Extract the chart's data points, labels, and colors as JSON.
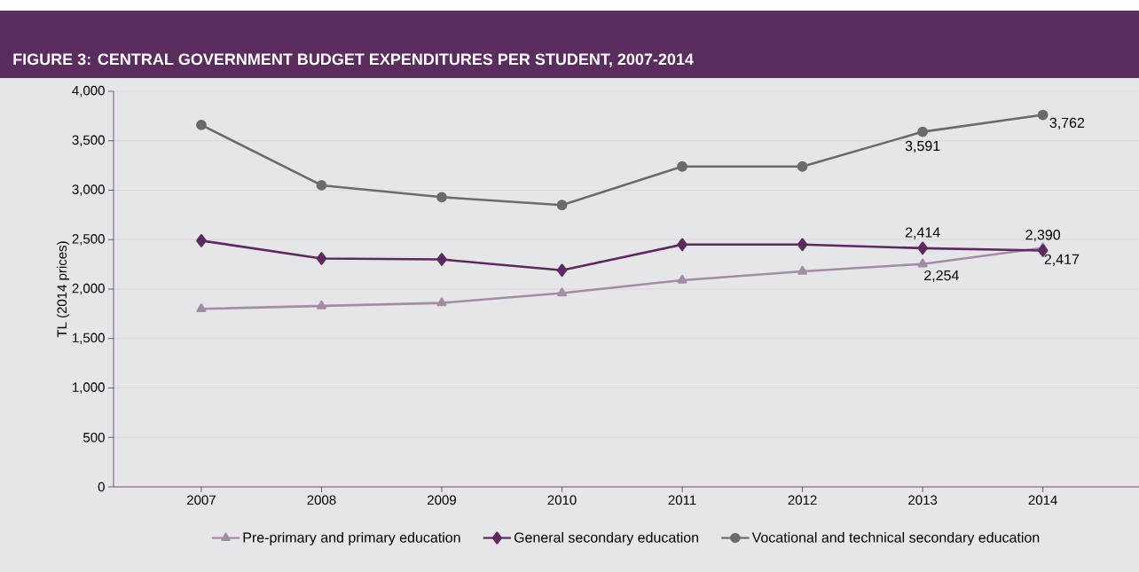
{
  "chart_data": {
    "type": "line",
    "title": "FIGURE 3: CENTRAL GOVERNMENT BUDGET EXPENDITURES PER STUDENT, 2007-2014",
    "ylabel": "TL (2014 prices)",
    "categories": [
      "2007",
      "2008",
      "2009",
      "2010",
      "2011",
      "2012",
      "2013",
      "2014"
    ],
    "series": [
      {
        "name": "Pre-primary and primary education",
        "color": "#a48ca6",
        "marker": "triangle",
        "values": [
          1800,
          1830,
          1860,
          1960,
          2090,
          2180,
          2254,
          2417
        ],
        "value_labels": [
          null,
          null,
          null,
          null,
          null,
          null,
          "2,254",
          "2,417"
        ]
      },
      {
        "name": "General secondary education",
        "color": "#5b2a5e",
        "marker": "diamond",
        "values": [
          2490,
          2310,
          2300,
          2190,
          2450,
          2450,
          2414,
          2390
        ],
        "value_labels": [
          null,
          null,
          null,
          null,
          null,
          null,
          "2,414",
          "2,390"
        ]
      },
      {
        "name": "Vocational and technical secondary education",
        "color": "#6b6b6d",
        "marker": "circle",
        "values": [
          3660,
          3050,
          2930,
          2850,
          3240,
          3240,
          3591,
          3762
        ],
        "value_labels": [
          null,
          null,
          null,
          null,
          null,
          null,
          "3,591",
          "3,762"
        ]
      }
    ],
    "ylim": [
      0,
      4000
    ],
    "yticks": [
      {
        "value": 0,
        "label": "0"
      },
      {
        "value": 500,
        "label": "500"
      },
      {
        "value": 1000,
        "label": "1,000"
      },
      {
        "value": 1500,
        "label": "1,500"
      },
      {
        "value": 2000,
        "label": "2,000"
      },
      {
        "value": 2500,
        "label": "2,500"
      },
      {
        "value": 3000,
        "label": "3,000"
      },
      {
        "value": 3500,
        "label": "3,500"
      },
      {
        "value": 4000,
        "label": "4,000"
      }
    ],
    "grid": "y",
    "legend": "bottom",
    "line_style": "solid"
  }
}
